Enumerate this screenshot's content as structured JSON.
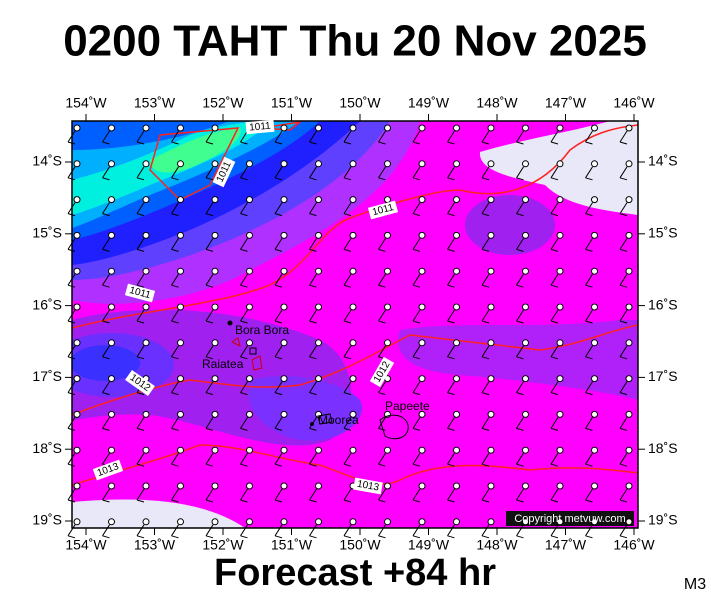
{
  "header": {
    "title": "0200 TAHT Thu 20 Nov 2025"
  },
  "map": {
    "lon_labels": [
      "154˚W",
      "153˚W",
      "152˚W",
      "151˚W",
      "150˚W",
      "149˚W",
      "148˚W",
      "147˚W",
      "146˚W"
    ],
    "lat_labels": [
      "14˚S",
      "15˚S",
      "16˚S",
      "17˚S",
      "18˚S",
      "19˚S"
    ],
    "places": [
      "Bora Bora",
      "Raiatea",
      "Moorea",
      "Papeete"
    ],
    "isobar_labels": [
      "1011",
      "1011",
      "1011",
      "1011",
      "1012",
      "1012",
      "1013",
      "1013"
    ],
    "copyright": "Copyright metvuw.com"
  },
  "footer": {
    "forecast": "Forecast +84 hr",
    "model": "M3"
  }
}
